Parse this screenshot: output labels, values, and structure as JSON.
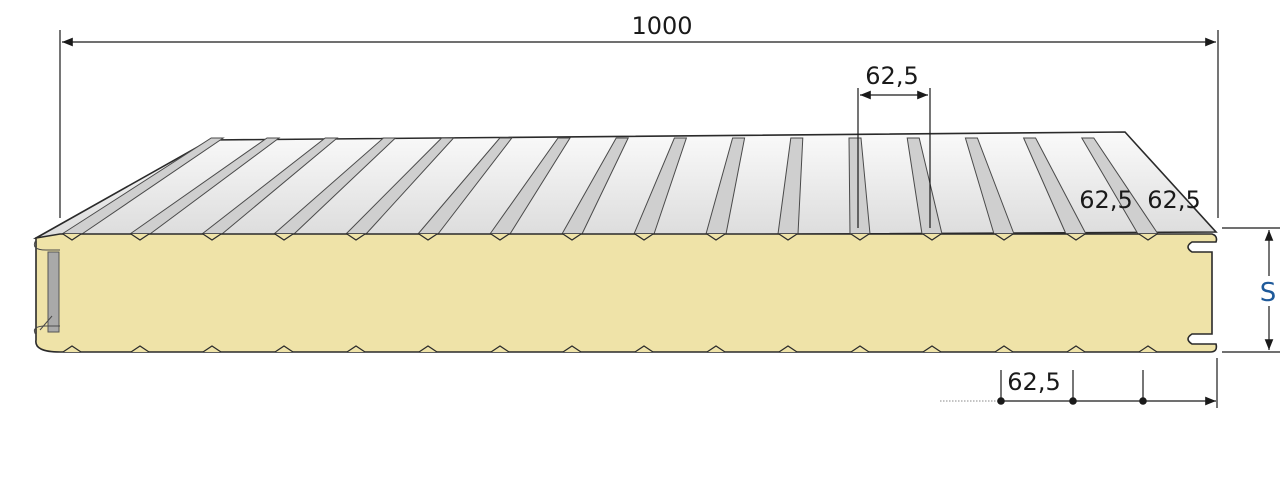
{
  "dimensions": {
    "total_width": "1000",
    "rib_pitch_top": "62,5",
    "rib_pitch_right_a": "62,5",
    "rib_pitch_right_b": "62,5",
    "rib_pitch_bottom": "62,5",
    "thickness": "S"
  },
  "colors": {
    "foam_core": "#efe3a8",
    "steel_face": "#e9e9e9",
    "steel_dark": "#b9b9b9",
    "outline": "#2a2a2a",
    "thickness_label": "#1f5a9a",
    "edge_seal": "#a9a9a9"
  }
}
